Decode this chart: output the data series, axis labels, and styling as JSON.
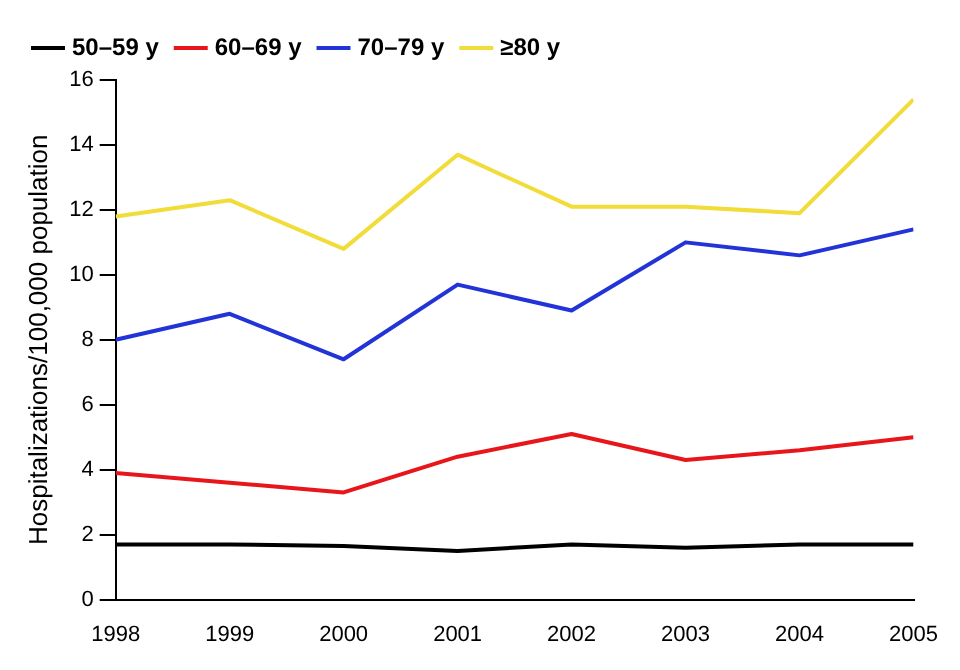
{
  "chart_data": {
    "type": "line",
    "ylabel": "Hospitalizations/100,000 population",
    "x": [
      1998,
      1999,
      2000,
      2001,
      2002,
      2003,
      2004,
      2005
    ],
    "xlim": [
      1998,
      2005
    ],
    "xticks": [
      1998,
      1999,
      2000,
      2001,
      2002,
      2003,
      2004,
      2005
    ],
    "ylim": [
      0,
      16
    ],
    "yticks": [
      0,
      2,
      4,
      6,
      8,
      10,
      12,
      14,
      16
    ],
    "grid": false,
    "legend": "top",
    "marker": "none",
    "line_style": "solid",
    "series": [
      {
        "name": "50–59 y",
        "color": "#000000",
        "values": [
          1.7,
          1.7,
          1.65,
          1.5,
          1.7,
          1.6,
          1.7,
          1.7
        ]
      },
      {
        "name": "60–69 y",
        "color": "#e8161b",
        "values": [
          3.9,
          3.6,
          3.3,
          4.4,
          5.1,
          4.3,
          4.6,
          5.0
        ]
      },
      {
        "name": "70–79 y",
        "color": "#2233d8",
        "values": [
          8.0,
          8.8,
          7.4,
          9.7,
          8.9,
          11.0,
          10.6,
          11.4
        ]
      },
      {
        "name": "≥80 y",
        "color": "#f2dc3a",
        "values": [
          11.8,
          12.3,
          10.8,
          13.7,
          12.1,
          12.1,
          11.9,
          15.4
        ]
      }
    ]
  }
}
